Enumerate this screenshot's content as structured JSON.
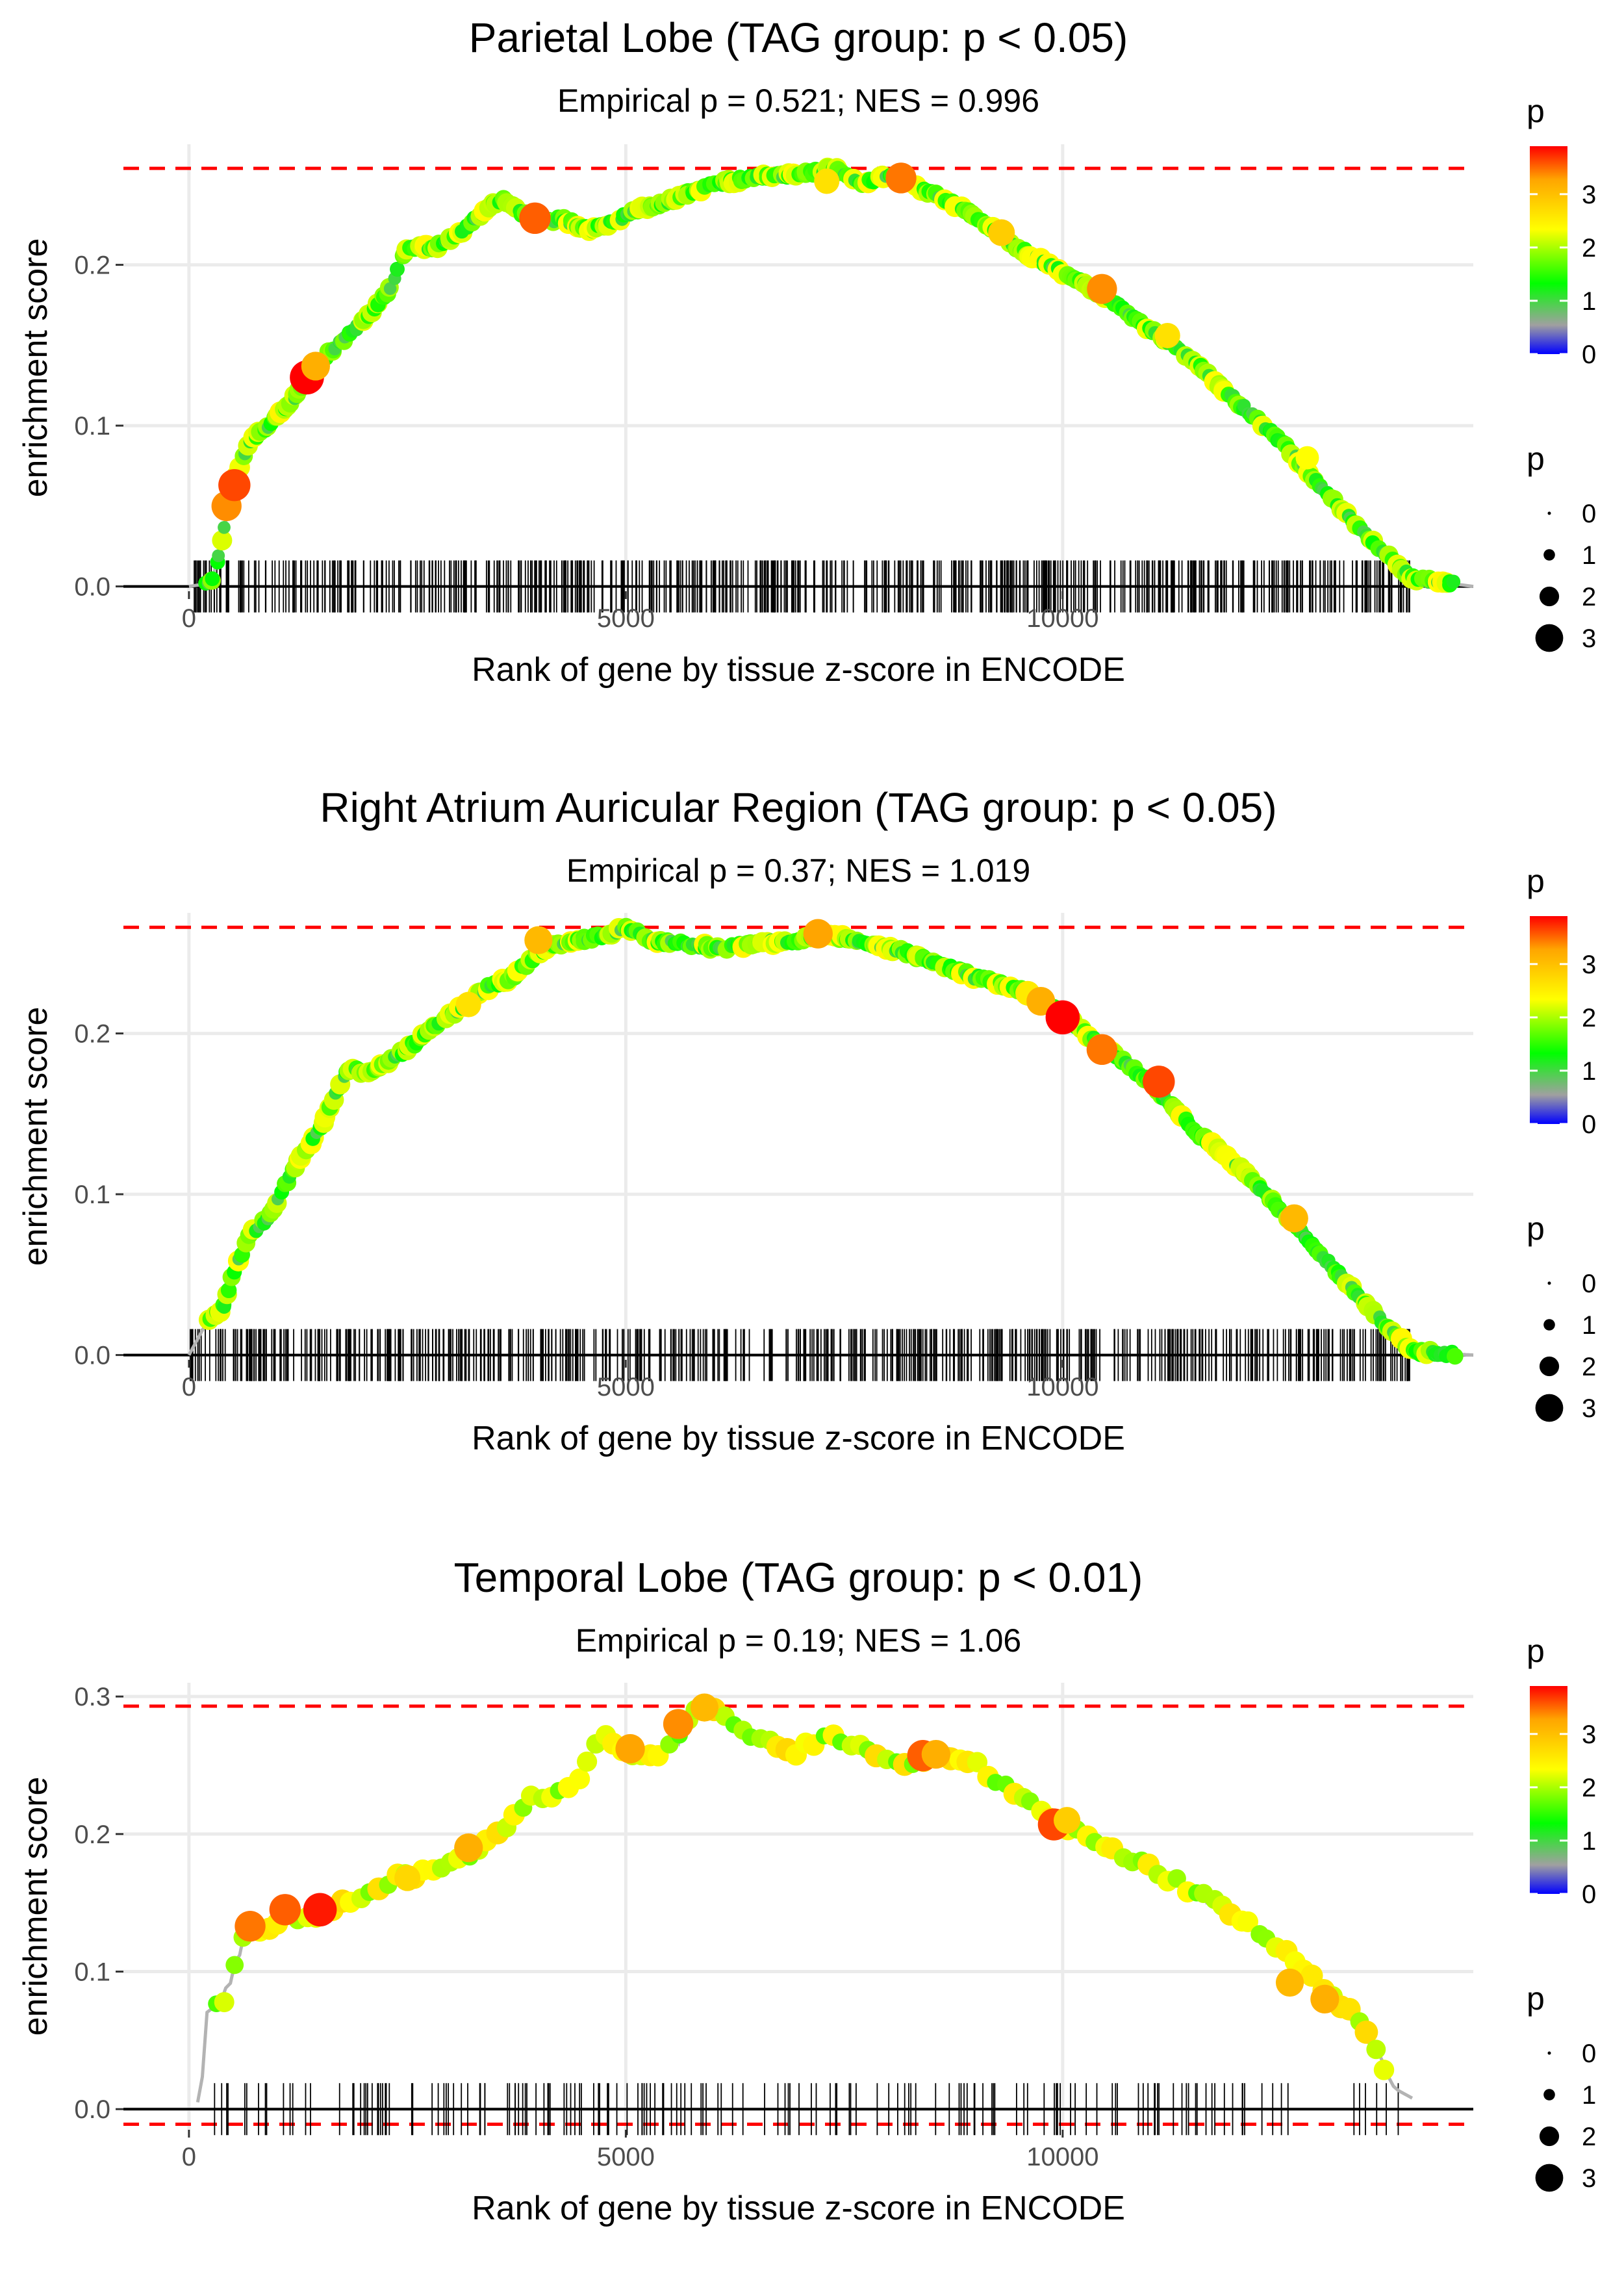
{
  "palette": {
    "blue": "#0000ff",
    "grey": "#a0a0a0",
    "green": "#00ff00",
    "yellow": "#ffff00",
    "orange": "#ffa500",
    "red": "#ff0000",
    "threshold_line": "#ff0000",
    "zero_line": "#000000",
    "es_path": "#b3b3b3",
    "gridline": "#ebebeb"
  },
  "chart_data": [
    {
      "type": "line",
      "title": "Parietal Lobe (TAG group: p < 0.05)",
      "subtitle": "Empirical p = 0.521; NES = 0.996",
      "xlabel": "Rank of gene by tissue z-score in ENCODE",
      "ylabel": "enrichment score",
      "xlim": [
        -750,
        14700
      ],
      "ylim": [
        -0.003,
        0.275
      ],
      "x_ticks": [
        0,
        5000,
        10000
      ],
      "x_tick_labels": [
        "0",
        "5000",
        "10000"
      ],
      "y_ticks": [
        0.0,
        0.1,
        0.2
      ],
      "y_tick_labels": [
        "0.0",
        "0.1",
        "0.2"
      ],
      "max_es_line": 0.26,
      "min_es_line": null,
      "rug_density": 620,
      "rug_range": [
        0,
        14000
      ],
      "es_curve": [
        [
          0,
          0
        ],
        [
          250,
          0.002
        ],
        [
          350,
          0.02
        ],
        [
          450,
          0.05
        ],
        [
          550,
          0.07
        ],
        [
          700,
          0.09
        ],
        [
          900,
          0.1
        ],
        [
          1100,
          0.11
        ],
        [
          1300,
          0.125
        ],
        [
          1500,
          0.14
        ],
        [
          1700,
          0.15
        ],
        [
          2000,
          0.165
        ],
        [
          2300,
          0.185
        ],
        [
          2500,
          0.212
        ],
        [
          2800,
          0.21
        ],
        [
          3100,
          0.22
        ],
        [
          3400,
          0.235
        ],
        [
          3600,
          0.24
        ],
        [
          3800,
          0.232
        ],
        [
          4000,
          0.228
        ],
        [
          4300,
          0.228
        ],
        [
          4600,
          0.222
        ],
        [
          4800,
          0.226
        ],
        [
          5200,
          0.235
        ],
        [
          5600,
          0.242
        ],
        [
          6000,
          0.25
        ],
        [
          6500,
          0.255
        ],
        [
          7000,
          0.256
        ],
        [
          7400,
          0.26
        ],
        [
          7700,
          0.25
        ],
        [
          8000,
          0.255
        ],
        [
          8500,
          0.245
        ],
        [
          9000,
          0.23
        ],
        [
          9500,
          0.21
        ],
        [
          10000,
          0.195
        ],
        [
          10500,
          0.18
        ],
        [
          11000,
          0.16
        ],
        [
          11500,
          0.14
        ],
        [
          12000,
          0.115
        ],
        [
          12500,
          0.09
        ],
        [
          13000,
          0.06
        ],
        [
          13500,
          0.03
        ],
        [
          14000,
          0.005
        ],
        [
          14700,
          0
        ]
      ],
      "highlight_points": [
        [
          430,
          0.05,
          3.3
        ],
        [
          520,
          0.063,
          3.6
        ],
        [
          1350,
          0.13,
          3.9
        ],
        [
          1450,
          0.137,
          3.1
        ],
        [
          3960,
          0.229,
          3.5
        ],
        [
          7300,
          0.252,
          2.6
        ],
        [
          8150,
          0.254,
          3.4
        ],
        [
          9300,
          0.22,
          2.8
        ],
        [
          10450,
          0.185,
          3.3
        ],
        [
          11200,
          0.156,
          2.6
        ],
        [
          12800,
          0.08,
          2.3
        ]
      ],
      "color_legend": {
        "title": "p",
        "ticks": [
          "0",
          "1",
          "2",
          "3"
        ]
      },
      "size_legend": {
        "title": "p",
        "labels": [
          "0",
          "1",
          "2",
          "3"
        ]
      }
    },
    {
      "type": "line",
      "title": "Right Atrium Auricular Region (TAG group: p < 0.05)",
      "subtitle": "Empirical p = 0.37; NES = 1.019",
      "xlabel": "Rank of gene by tissue z-score in ENCODE",
      "ylabel": "enrichment score",
      "xlim": [
        -750,
        14700
      ],
      "ylim": [
        -0.003,
        0.275
      ],
      "x_ticks": [
        0,
        5000,
        10000
      ],
      "x_tick_labels": [
        "0",
        "5000",
        "10000"
      ],
      "y_ticks": [
        0.0,
        0.1,
        0.2
      ],
      "y_tick_labels": [
        "0.0",
        "0.1",
        "0.2"
      ],
      "max_es_line": 0.266,
      "min_es_line": null,
      "rug_density": 600,
      "rug_range": [
        0,
        14000
      ],
      "es_curve": [
        [
          0,
          0
        ],
        [
          100,
          0.01
        ],
        [
          200,
          0.02
        ],
        [
          400,
          0.03
        ],
        [
          500,
          0.05
        ],
        [
          700,
          0.075
        ],
        [
          900,
          0.085
        ],
        [
          1100,
          0.105
        ],
        [
          1300,
          0.125
        ],
        [
          1500,
          0.14
        ],
        [
          1700,
          0.165
        ],
        [
          1850,
          0.18
        ],
        [
          2000,
          0.175
        ],
        [
          2200,
          0.18
        ],
        [
          2500,
          0.19
        ],
        [
          2800,
          0.205
        ],
        [
          3100,
          0.215
        ],
        [
          3400,
          0.228
        ],
        [
          3700,
          0.235
        ],
        [
          4000,
          0.25
        ],
        [
          4300,
          0.257
        ],
        [
          4700,
          0.26
        ],
        [
          5000,
          0.266
        ],
        [
          5300,
          0.258
        ],
        [
          5700,
          0.255
        ],
        [
          6100,
          0.253
        ],
        [
          6500,
          0.256
        ],
        [
          7000,
          0.258
        ],
        [
          7300,
          0.262
        ],
        [
          7700,
          0.256
        ],
        [
          8100,
          0.252
        ],
        [
          8500,
          0.245
        ],
        [
          9000,
          0.235
        ],
        [
          9500,
          0.228
        ],
        [
          10000,
          0.212
        ],
        [
          10500,
          0.19
        ],
        [
          11000,
          0.17
        ],
        [
          11500,
          0.14
        ],
        [
          12000,
          0.118
        ],
        [
          12500,
          0.09
        ],
        [
          13000,
          0.06
        ],
        [
          13500,
          0.03
        ],
        [
          14000,
          0.002
        ],
        [
          14700,
          0
        ]
      ],
      "highlight_points": [
        [
          4000,
          0.258,
          3.0
        ],
        [
          7200,
          0.262,
          3.2
        ],
        [
          9600,
          0.225,
          2.5
        ],
        [
          9750,
          0.22,
          3.1
        ],
        [
          10000,
          0.21,
          3.9
        ],
        [
          10450,
          0.19,
          3.4
        ],
        [
          11100,
          0.17,
          3.6
        ],
        [
          12650,
          0.085,
          3.0
        ],
        [
          3200,
          0.218,
          2.6
        ]
      ],
      "color_legend": {
        "title": "p",
        "ticks": [
          "0",
          "1",
          "2",
          "3"
        ]
      },
      "size_legend": {
        "title": "p",
        "labels": [
          "0",
          "1",
          "2",
          "3"
        ]
      }
    },
    {
      "type": "line",
      "title": "Temporal Lobe (TAG group: p < 0.01)",
      "subtitle": "Empirical p = 0.19; NES = 1.06",
      "xlabel": "Rank of gene by tissue z-score in ENCODE",
      "ylabel": "enrichment score",
      "xlim": [
        -750,
        14700
      ],
      "ylim": [
        -0.015,
        0.31
      ],
      "x_ticks": [
        0,
        5000,
        10000
      ],
      "x_tick_labels": [
        "0",
        "5000",
        "10000"
      ],
      "y_ticks": [
        0.0,
        0.1,
        0.2,
        0.3
      ],
      "y_tick_labels": [
        "0.0",
        "0.1",
        "0.2",
        "0.3"
      ],
      "max_es_line": 0.293,
      "min_es_line": -0.011,
      "rug_density": 170,
      "rug_range": [
        150,
        13900
      ],
      "es_curve": [
        [
          100,
          0.005
        ],
        [
          150,
          0.02
        ],
        [
          200,
          0.07
        ],
        [
          300,
          0.075
        ],
        [
          400,
          0.08
        ],
        [
          500,
          0.1
        ],
        [
          600,
          0.12
        ],
        [
          700,
          0.133
        ],
        [
          900,
          0.13
        ],
        [
          1100,
          0.14
        ],
        [
          1300,
          0.135
        ],
        [
          1500,
          0.143
        ],
        [
          1800,
          0.15
        ],
        [
          2100,
          0.16
        ],
        [
          2400,
          0.168
        ],
        [
          2700,
          0.172
        ],
        [
          3000,
          0.178
        ],
        [
          3300,
          0.188
        ],
        [
          3600,
          0.205
        ],
        [
          3900,
          0.225
        ],
        [
          4200,
          0.228
        ],
        [
          4500,
          0.24
        ],
        [
          4700,
          0.276
        ],
        [
          5000,
          0.26
        ],
        [
          5300,
          0.255
        ],
        [
          5600,
          0.27
        ],
        [
          5800,
          0.29
        ],
        [
          5950,
          0.292
        ],
        [
          6200,
          0.28
        ],
        [
          6500,
          0.27
        ],
        [
          6900,
          0.258
        ],
        [
          7200,
          0.268
        ],
        [
          7500,
          0.27
        ],
        [
          7800,
          0.257
        ],
        [
          8200,
          0.25
        ],
        [
          8600,
          0.26
        ],
        [
          9000,
          0.252
        ],
        [
          9400,
          0.232
        ],
        [
          9800,
          0.215
        ],
        [
          10200,
          0.2
        ],
        [
          10600,
          0.187
        ],
        [
          11000,
          0.175
        ],
        [
          11400,
          0.162
        ],
        [
          11800,
          0.148
        ],
        [
          12200,
          0.132
        ],
        [
          12600,
          0.11
        ],
        [
          13000,
          0.087
        ],
        [
          13400,
          0.063
        ],
        [
          13800,
          0.015
        ],
        [
          14000,
          0.008
        ]
      ],
      "highlight_points": [
        [
          700,
          0.133,
          3.4
        ],
        [
          1100,
          0.145,
          3.5
        ],
        [
          1500,
          0.145,
          3.8
        ],
        [
          3200,
          0.19,
          3.1
        ],
        [
          5050,
          0.262,
          3.2
        ],
        [
          5600,
          0.28,
          3.3
        ],
        [
          5900,
          0.292,
          3.0
        ],
        [
          8400,
          0.257,
          3.5
        ],
        [
          8550,
          0.258,
          3.1
        ],
        [
          9900,
          0.207,
          3.6
        ],
        [
          10050,
          0.21,
          2.8
        ],
        [
          12600,
          0.092,
          3.0
        ],
        [
          13000,
          0.08,
          3.1
        ],
        [
          2500,
          0.168,
          2.7
        ]
      ],
      "color_legend": {
        "title": "p",
        "ticks": [
          "0",
          "1",
          "2",
          "3"
        ]
      },
      "size_legend": {
        "title": "p",
        "labels": [
          "0",
          "1",
          "2",
          "3"
        ]
      }
    }
  ]
}
